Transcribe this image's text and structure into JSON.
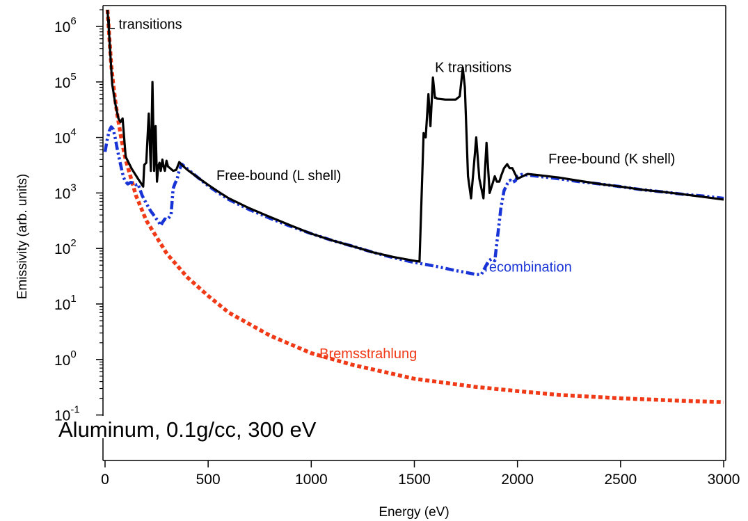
{
  "chart_data": {
    "type": "line",
    "title": "",
    "xlabel": "Energy (eV)",
    "ylabel": "Emissivity (arb. units)",
    "xlim": [
      -10,
      3010
    ],
    "ylim": [
      0.1,
      2000000
    ],
    "yscale": "log",
    "xticks": [
      0,
      500,
      1000,
      1500,
      2000,
      2500,
      3000
    ],
    "xtick_labels": [
      "0",
      "500",
      "1000",
      "1500",
      "2000",
      "2500",
      "3000"
    ],
    "yticks": [
      {
        "value": 1000000,
        "base": "10",
        "exp": "6"
      },
      {
        "value": 100000,
        "base": "10",
        "exp": "5"
      },
      {
        "value": 10000,
        "base": "10",
        "exp": "4"
      },
      {
        "value": 1000,
        "base": "10",
        "exp": "3"
      },
      {
        "value": 100,
        "base": "10",
        "exp": "2"
      },
      {
        "value": 10,
        "base": "10",
        "exp": "1"
      },
      {
        "value": 1,
        "base": "10",
        "exp": "0"
      },
      {
        "value": 0.1,
        "base": "10",
        "exp": "-1"
      }
    ],
    "grid": false,
    "legend": "none",
    "series": [
      {
        "color": "#000000",
        "style": "solid",
        "x": [
          12,
          20,
          35,
          50,
          65,
          75,
          85,
          100,
          130,
          160,
          185,
          190,
          200,
          212,
          222,
          230,
          238,
          245,
          252,
          258,
          264,
          270,
          278,
          284,
          290,
          298,
          305,
          315,
          330,
          345,
          360,
          372,
          400,
          450,
          500,
          550,
          600,
          700,
          800,
          900,
          1000,
          1100,
          1200,
          1300,
          1400,
          1500,
          1525,
          1545,
          1555,
          1568,
          1578,
          1590,
          1600,
          1605,
          1610,
          1650,
          1700,
          1720,
          1735,
          1745,
          1760,
          1775,
          1790,
          1800,
          1815,
          1835,
          1850,
          1865,
          1880,
          1890,
          1900,
          1912,
          1922,
          1935,
          1950,
          1962,
          1975,
          2000,
          2025,
          2050,
          2100,
          2200,
          2300,
          2400,
          2500,
          2600,
          2700,
          2800,
          2900,
          3000
        ],
        "y": [
          2000000,
          700000,
          90000,
          40000,
          22000,
          19000,
          22000,
          4500,
          2700,
          1800,
          1300,
          3200,
          3500,
          27000,
          2500,
          100000,
          2500,
          16000,
          1600,
          3000,
          3500,
          2500,
          4000,
          3000,
          2500,
          3800,
          3000,
          2800,
          2500,
          2600,
          3600,
          3200,
          2600,
          1900,
          1400,
          1050,
          800,
          530,
          370,
          260,
          185,
          140,
          110,
          85,
          70,
          60,
          58,
          12000,
          10000,
          60000,
          16000,
          120000,
          52000,
          52000,
          50000,
          48000,
          48000,
          55000,
          180000,
          80000,
          2000,
          800,
          3500,
          10000,
          1800,
          800,
          8000,
          1000,
          1500,
          2000,
          1600,
          1600,
          2100,
          2800,
          3300,
          2800,
          2800,
          1800,
          2000,
          2200,
          2100,
          1900,
          1650,
          1450,
          1300,
          1150,
          1050,
          950,
          850,
          760
        ]
      },
      {
        "color": "#1833d6",
        "style": "dash-dot",
        "x": [
          0,
          10,
          20,
          30,
          40,
          50,
          60,
          70,
          80,
          90,
          100,
          110,
          125,
          140,
          150,
          160,
          180,
          200,
          220,
          240,
          260,
          270,
          280,
          290,
          300,
          310,
          320,
          330,
          340,
          350,
          360,
          372,
          400,
          450,
          500,
          550,
          600,
          700,
          800,
          900,
          1000,
          1100,
          1200,
          1300,
          1400,
          1500,
          1550,
          1600,
          1650,
          1700,
          1750,
          1800,
          1825,
          1860,
          1875,
          1890,
          1905,
          1920,
          1935,
          1950,
          1965,
          1975,
          1990,
          2000,
          2020,
          2050,
          2100,
          2200,
          2300,
          2400,
          2500,
          2600,
          2700,
          2800,
          2900,
          3000
        ],
        "y": [
          5500,
          9000,
          13000,
          15500,
          14000,
          9500,
          6000,
          4000,
          2700,
          1900,
          1600,
          1450,
          1550,
          1500,
          1400,
          1450,
          900,
          650,
          480,
          380,
          300,
          260,
          300,
          340,
          330,
          360,
          400,
          1200,
          1500,
          1800,
          2600,
          3300,
          2700,
          1900,
          1350,
          1000,
          760,
          500,
          350,
          250,
          185,
          140,
          110,
          85,
          68,
          56,
          52,
          48,
          44,
          40,
          37,
          34,
          34,
          60,
          65,
          60,
          180,
          550,
          1100,
          1450,
          1700,
          1550,
          1650,
          2000,
          2150,
          2100,
          2000,
          1800,
          1600,
          1450,
          1300,
          1150,
          1050,
          950,
          880,
          800
        ]
      },
      {
        "color": "#f03a17",
        "style": "dotted",
        "x": [
          12,
          20,
          30,
          40,
          50,
          60,
          80,
          100,
          150,
          200,
          300,
          400,
          500,
          600,
          800,
          1000,
          1200,
          1500,
          1800,
          2000,
          2200,
          2500,
          2800,
          3000
        ],
        "y": [
          2000000,
          700000,
          200000,
          90000,
          45000,
          25000,
          9000,
          4000,
          900,
          320,
          80,
          30,
          14,
          7,
          2.7,
          1.3,
          0.8,
          0.45,
          0.32,
          0.27,
          0.23,
          0.2,
          0.18,
          0.17
        ]
      }
    ],
    "annotations": [
      {
        "text": "L transitions",
        "x": 12,
        "y": 900000,
        "color": "#000000"
      },
      {
        "text": "K transitions",
        "x": 1600,
        "y": 150000,
        "color": "#000000"
      },
      {
        "text": "Free-bound (L shell)",
        "x": 540,
        "y": 1700,
        "color": "#000000"
      },
      {
        "text": "Free-bound (K shell)",
        "x": 2150,
        "y": 3400,
        "color": "#000000"
      },
      {
        "text": "recombination",
        "x": 1840,
        "y": 38,
        "color": "#1833d6"
      },
      {
        "text": "Bremsstrahlung",
        "x": 1040,
        "y": 1.05,
        "color": "#f03a17"
      }
    ],
    "inset_text": "Aluminum, 0.1g/cc, 300 eV"
  }
}
